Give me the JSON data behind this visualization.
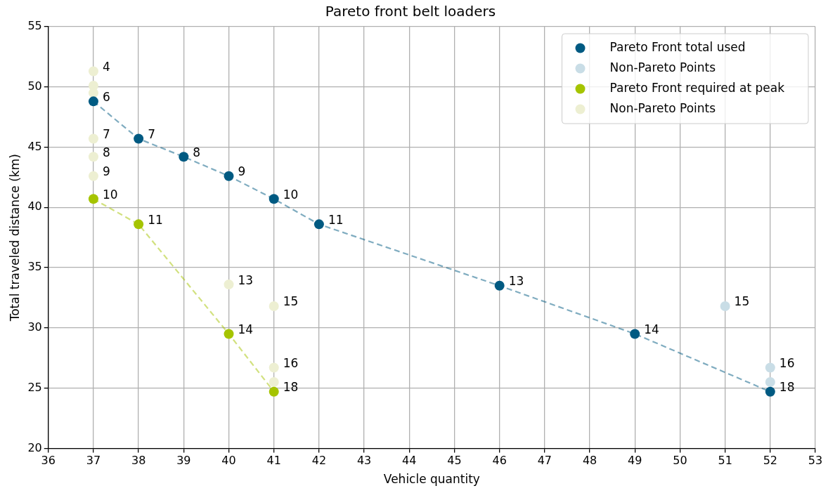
{
  "chart_data": {
    "type": "scatter",
    "title": "Pareto front belt loaders",
    "xlabel": "Vehicle quantity",
    "ylabel": "Total traveled distance (km)",
    "xlim": [
      36,
      53
    ],
    "xticks": [
      36,
      37,
      38,
      39,
      40,
      41,
      42,
      43,
      44,
      45,
      46,
      47,
      48,
      49,
      50,
      51,
      52,
      53
    ],
    "ylim": [
      20,
      55
    ],
    "yticks": [
      20,
      25,
      30,
      35,
      40,
      45,
      50,
      55
    ],
    "grid": true,
    "legend": "top right",
    "marker": "circle",
    "series": [
      {
        "name": "Pareto Front total used",
        "type": "line",
        "line_style": "dashed",
        "color": "#005a82",
        "x": [
          37,
          38,
          39,
          40,
          41,
          42,
          46,
          49,
          52
        ],
        "values": [
          48.8,
          45.7,
          44.2,
          42.6,
          40.7,
          38.6,
          33.5,
          29.5,
          24.7
        ]
      },
      {
        "name": "Non-Pareto Points",
        "type": "scatter",
        "color": "#c9dde6",
        "x": [
          51,
          52,
          52
        ],
        "values": [
          31.8,
          26.7,
          25.5
        ]
      },
      {
        "name": "Pareto Front required at peak",
        "type": "line",
        "line_style": "dashed",
        "color": "#a5c400",
        "x": [
          37,
          38,
          40,
          41
        ],
        "values": [
          40.7,
          38.6,
          29.5,
          24.7
        ]
      },
      {
        "name": "Non-Pareto Points",
        "type": "scatter",
        "color": "#edefd2",
        "x": [
          37,
          37,
          37,
          37,
          37,
          37,
          40,
          41,
          41,
          41
        ],
        "values": [
          51.3,
          50.1,
          49.5,
          45.7,
          44.2,
          42.6,
          33.6,
          31.8,
          26.7,
          25.5
        ]
      }
    ],
    "annotations": [
      {
        "text": "6",
        "x": 37,
        "y": 48.8
      },
      {
        "text": "7",
        "x": 38,
        "y": 45.7
      },
      {
        "text": "8",
        "x": 39,
        "y": 44.2
      },
      {
        "text": "9",
        "x": 40,
        "y": 42.6
      },
      {
        "text": "10",
        "x": 41,
        "y": 40.7
      },
      {
        "text": "11",
        "x": 42,
        "y": 38.6
      },
      {
        "text": "13",
        "x": 46,
        "y": 33.5
      },
      {
        "text": "14",
        "x": 49,
        "y": 29.5
      },
      {
        "text": "18",
        "x": 52,
        "y": 24.7
      },
      {
        "text": "15",
        "x": 51,
        "y": 31.8
      },
      {
        "text": "16",
        "x": 52,
        "y": 26.7
      },
      {
        "text": "10",
        "x": 37,
        "y": 40.7
      },
      {
        "text": "11",
        "x": 38,
        "y": 38.6
      },
      {
        "text": "14",
        "x": 40,
        "y": 29.5
      },
      {
        "text": "18",
        "x": 41,
        "y": 24.7
      },
      {
        "text": "4",
        "x": 37,
        "y": 51.3
      },
      {
        "text": "7",
        "x": 37,
        "y": 45.7
      },
      {
        "text": "8",
        "x": 37,
        "y": 44.2
      },
      {
        "text": "9",
        "x": 37,
        "y": 42.6
      },
      {
        "text": "13",
        "x": 40,
        "y": 33.6
      },
      {
        "text": "15",
        "x": 41,
        "y": 31.8
      },
      {
        "text": "16",
        "x": 41,
        "y": 26.7
      }
    ]
  }
}
